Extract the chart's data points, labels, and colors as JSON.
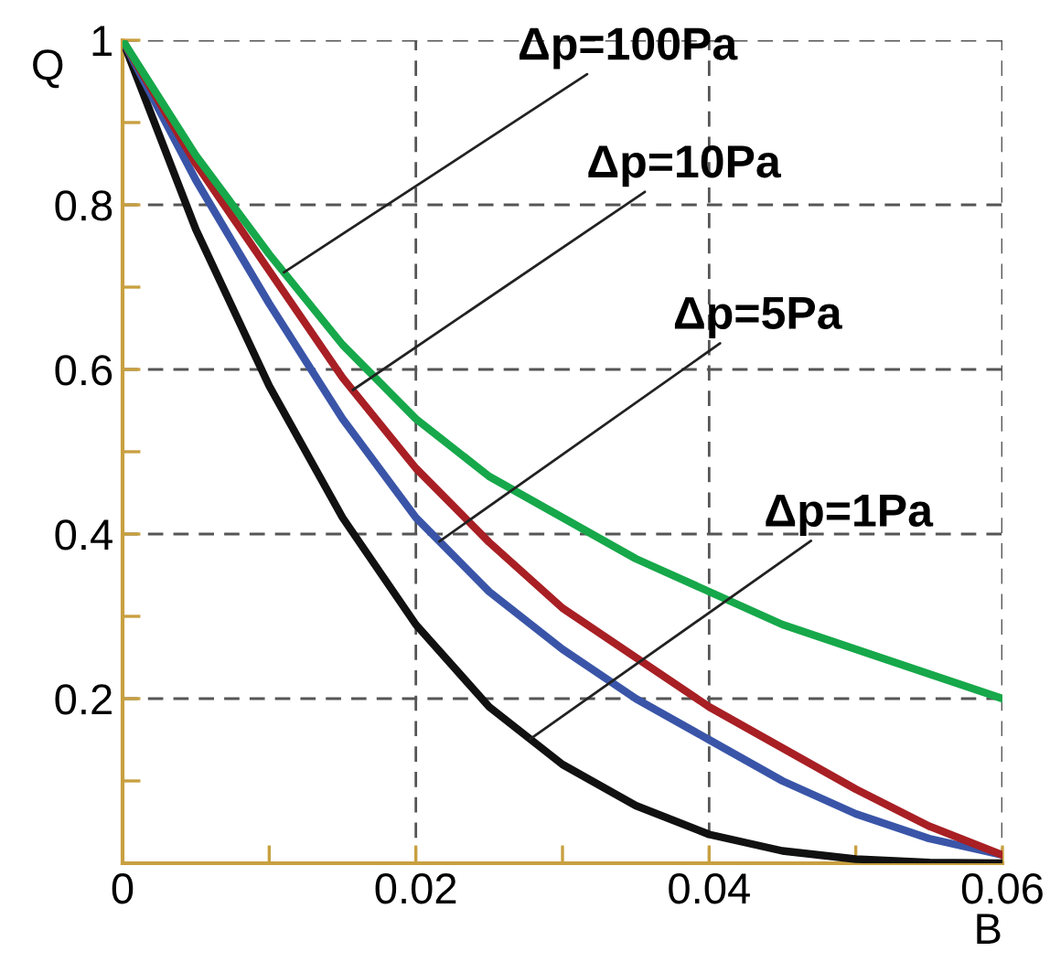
{
  "chart_data": {
    "type": "line",
    "xlabel": "B",
    "ylabel": "Q",
    "x": [
      0,
      0.005,
      0.01,
      0.015,
      0.02,
      0.025,
      0.03,
      0.035,
      0.04,
      0.045,
      0.05,
      0.055,
      0.06
    ],
    "series": [
      {
        "color": "#111111",
        "values": [
          1,
          0.77,
          0.58,
          0.42,
          0.29,
          0.19,
          0.12,
          0.07,
          0.035,
          0.015,
          0.005,
          0.001,
          0
        ]
      },
      {
        "color": "#3a55a8",
        "values": [
          1,
          0.83,
          0.68,
          0.54,
          0.42,
          0.33,
          0.26,
          0.2,
          0.15,
          0.1,
          0.06,
          0.03,
          0.01
        ]
      },
      {
        "color": "#a81f24",
        "values": [
          1,
          0.85,
          0.72,
          0.59,
          0.48,
          0.39,
          0.31,
          0.25,
          0.19,
          0.14,
          0.09,
          0.045,
          0.01
        ]
      },
      {
        "color": "#16a84a",
        "values": [
          1,
          0.86,
          0.74,
          0.63,
          0.54,
          0.47,
          0.42,
          0.37,
          0.33,
          0.29,
          0.26,
          0.23,
          0.2
        ]
      }
    ],
    "annotations": [
      {
        "text": "Δp=100Pa",
        "x": 0.011,
        "y": 0.718
      },
      {
        "text": "Δp=10Pa",
        "x": 0.0157,
        "y": 0.575
      },
      {
        "text": "Δp=5Pa",
        "x": 0.0216,
        "y": 0.391
      },
      {
        "text": "Δp=1Pa",
        "x": 0.0278,
        "y": 0.151
      }
    ],
    "xlim": [
      0,
      0.06
    ],
    "ylim": [
      0,
      1
    ],
    "xticks": [
      0,
      {
        "value": 0.01,
        "label": null
      },
      0.02,
      {
        "value": 0.03,
        "label": null
      },
      0.04,
      {
        "value": 0.05,
        "label": null
      },
      0.06
    ],
    "yticks": [
      {
        "value": 0.1,
        "label": null
      },
      0.2,
      {
        "value": 0.3,
        "label": null
      },
      0.4,
      {
        "value": 0.5,
        "label": null
      },
      0.6,
      {
        "value": 0.7,
        "label": null
      },
      0.8,
      {
        "value": 0.9,
        "label": null
      },
      1
    ],
    "grid": true,
    "legend": false,
    "marker": "none",
    "line_style": "solid"
  }
}
